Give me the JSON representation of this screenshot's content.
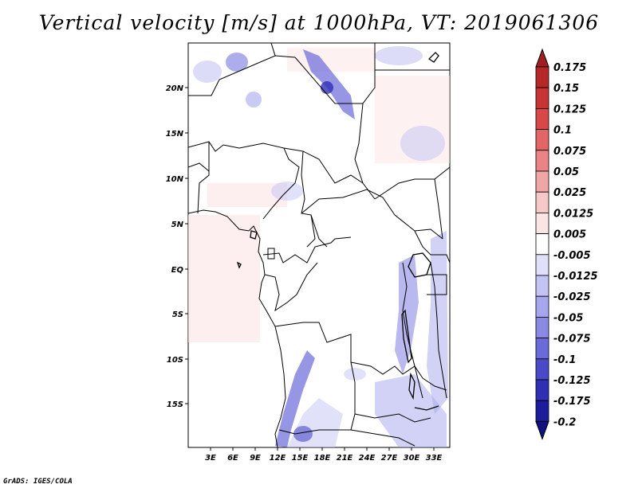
{
  "title": "Vertical velocity [m/s] at 1000hPa, VT: 2019061306",
  "credit": "GrADS: IGES/COLA",
  "map": {
    "lat_labels": [
      "20N",
      "15N",
      "10N",
      "5N",
      "EQ",
      "5S",
      "10S",
      "15S"
    ],
    "lon_labels": [
      "3E",
      "6E",
      "9E",
      "12E",
      "15E",
      "18E",
      "21E",
      "24E",
      "27E",
      "30E",
      "33E"
    ]
  },
  "colorbar": {
    "labels": [
      "0.175",
      "0.15",
      "0.125",
      "0.1",
      "0.075",
      "0.05",
      "0.025",
      "0.0125",
      "0.005",
      "-0.005",
      "-0.0125",
      "-0.025",
      "-0.05",
      "-0.075",
      "-0.1",
      "-0.125",
      "-0.175",
      "-0.2"
    ],
    "colors": [
      "#a01e1e",
      "#b62828",
      "#c83434",
      "#d84848",
      "#e26666",
      "#ea8484",
      "#f0a6a6",
      "#f6c8c8",
      "#fbe4e4",
      "#ffffff",
      "#e0e0fa",
      "#c4c4f4",
      "#a6a6ee",
      "#8a8ae4",
      "#6a6ad8",
      "#4a4ac8",
      "#3030b4",
      "#1c1c9c",
      "#10107e"
    ]
  }
}
